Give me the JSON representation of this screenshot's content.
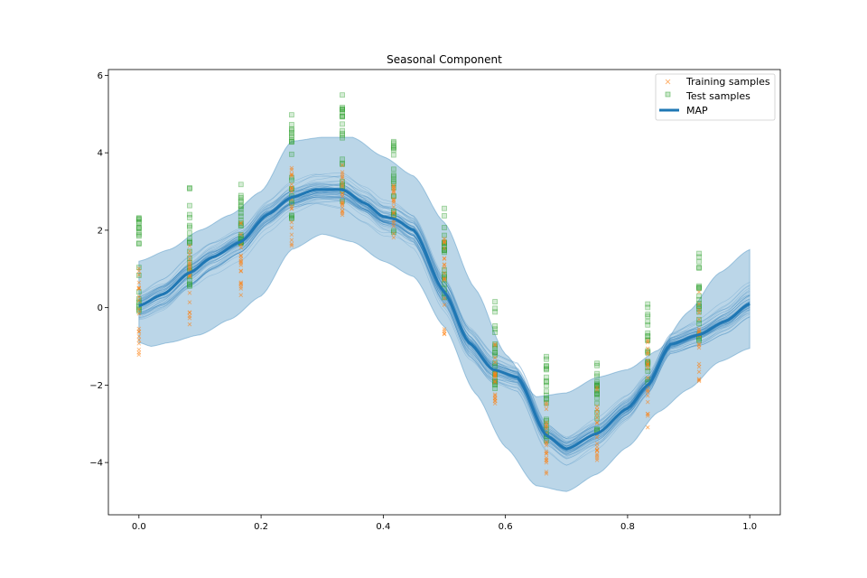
{
  "chart_data": {
    "type": "line",
    "title": "Seasonal Component",
    "xlabel": "",
    "ylabel": "",
    "xlim": [
      -0.05,
      1.05
    ],
    "ylim": [
      -5.35,
      6.15
    ],
    "x_ticks": [
      0.0,
      0.2,
      0.4,
      0.6,
      0.8,
      1.0
    ],
    "x_tick_labels": [
      "0.0",
      "0.2",
      "0.4",
      "0.6",
      "0.8",
      "1.0"
    ],
    "y_ticks": [
      -4,
      -2,
      0,
      2,
      4,
      6
    ],
    "y_tick_labels": [
      "−4",
      "−2",
      "0",
      "2",
      "4",
      "6"
    ],
    "grid": false,
    "legend_position": "top-right",
    "legend": [
      "Training samples",
      "Test samples",
      "MAP"
    ],
    "colors": {
      "map": "#1f77b4",
      "band": "#1f77b4",
      "samples": "#1f77b4",
      "training": "#ff7f0e",
      "test": "#2ca02c"
    },
    "map_curve": {
      "x": [
        0.0,
        0.04,
        0.083,
        0.12,
        0.167,
        0.21,
        0.25,
        0.29,
        0.333,
        0.37,
        0.4,
        0.417,
        0.45,
        0.5,
        0.54,
        0.58,
        0.62,
        0.667,
        0.7,
        0.75,
        0.8,
        0.833,
        0.87,
        0.917,
        0.96,
        1.0
      ],
      "y": [
        0.05,
        0.35,
        0.9,
        1.3,
        1.7,
        2.4,
        2.85,
        3.05,
        3.05,
        2.7,
        2.35,
        2.3,
        2.0,
        0.4,
        -0.9,
        -1.6,
        -1.8,
        -3.3,
        -3.65,
        -3.25,
        -2.6,
        -2.0,
        -0.95,
        -0.7,
        -0.35,
        0.1
      ]
    },
    "band_upper": {
      "x": [
        0.0,
        0.05,
        0.1,
        0.15,
        0.2,
        0.25,
        0.3,
        0.35,
        0.4,
        0.45,
        0.5,
        0.55,
        0.6,
        0.65,
        0.7,
        0.75,
        0.8,
        0.85,
        0.9,
        0.95,
        1.0
      ],
      "y": [
        1.2,
        1.5,
        2.0,
        2.4,
        3.0,
        4.3,
        4.4,
        4.4,
        3.9,
        3.4,
        2.2,
        0.5,
        -1.2,
        -2.3,
        -2.2,
        -1.8,
        -1.6,
        -1.1,
        -0.1,
        0.9,
        1.5
      ]
    },
    "band_lower": {
      "x": [
        0.0,
        0.02,
        0.05,
        0.1,
        0.15,
        0.2,
        0.25,
        0.3,
        0.35,
        0.4,
        0.45,
        0.5,
        0.55,
        0.6,
        0.65,
        0.7,
        0.75,
        0.8,
        0.85,
        0.9,
        0.95,
        1.0
      ],
      "y": [
        -0.9,
        -1.0,
        -0.9,
        -0.7,
        -0.3,
        0.3,
        1.5,
        1.9,
        1.7,
        1.2,
        0.8,
        -0.5,
        -2.2,
        -3.6,
        -4.6,
        -4.75,
        -4.3,
        -3.6,
        -2.7,
        -2.1,
        -1.4,
        -1.05
      ]
    },
    "training_samples": {
      "x": [
        0.0,
        0.083,
        0.167,
        0.25,
        0.333,
        0.417,
        0.5,
        0.583,
        0.667,
        0.75,
        0.833,
        0.917
      ],
      "min": [
        -1.25,
        -0.45,
        0.3,
        1.6,
        2.3,
        1.5,
        -0.7,
        -2.5,
        -4.3,
        -4.0,
        -3.1,
        -1.9
      ],
      "max": [
        1.05,
        1.6,
        2.2,
        3.8,
        3.9,
        3.2,
        1.9,
        -0.6,
        -2.4,
        -2.0,
        -0.7,
        0.5
      ]
    },
    "test_samples": {
      "x": [
        0.0,
        0.083,
        0.167,
        0.25,
        0.333,
        0.417,
        0.5,
        0.583,
        0.667,
        0.75,
        0.833,
        0.917
      ],
      "min": [
        -0.2,
        0.5,
        1.6,
        2.3,
        2.3,
        1.9,
        0.0,
        -2.2,
        -3.5,
        -3.2,
        -2.0,
        -0.9
      ],
      "max": [
        2.45,
        3.2,
        3.25,
        5.0,
        5.6,
        4.7,
        2.75,
        0.65,
        -1.25,
        -1.4,
        0.15,
        1.45
      ]
    }
  }
}
